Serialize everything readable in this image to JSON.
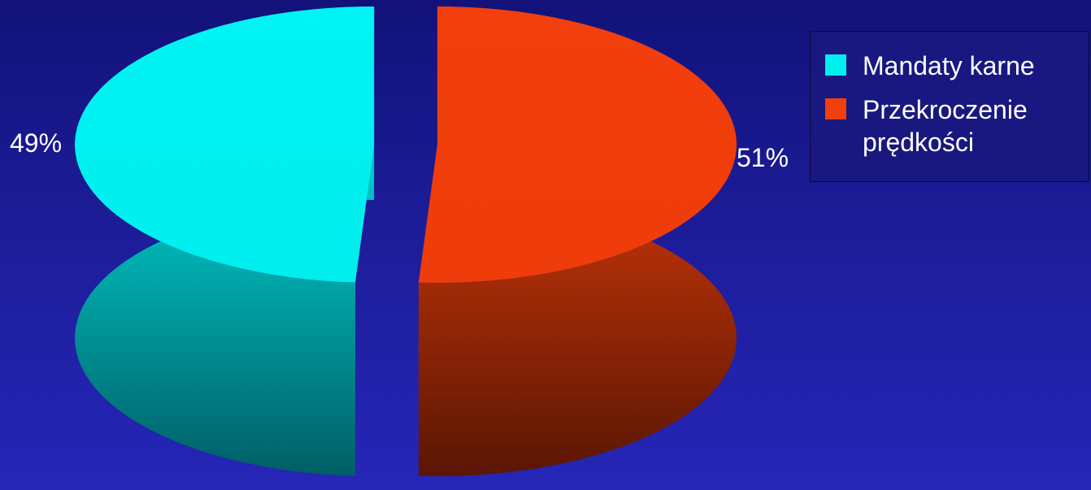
{
  "chart_data": {
    "type": "pie",
    "style": "3d-exploded",
    "slices": [
      {
        "name": "Mandaty karne",
        "value": 49,
        "label": "49%",
        "color": "#00f0f0"
      },
      {
        "name": "Przekroczenie prędkości",
        "value": 51,
        "label": "51%",
        "color": "#f0400c"
      }
    ],
    "legend": {
      "placement": "top-right",
      "items": [
        "Mandaty karne",
        "Przekroczenie prędkości"
      ]
    }
  }
}
